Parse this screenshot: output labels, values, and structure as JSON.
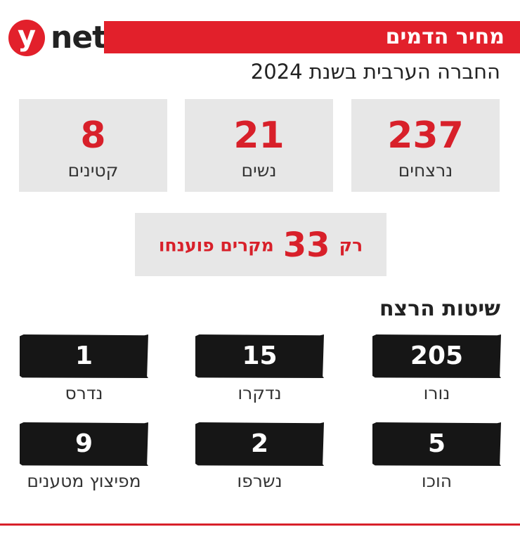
{
  "header": {
    "logo_letter": "y",
    "logo_text": "net",
    "title": "מחיר הדמים",
    "subtitle": "החברה הערבית בשנת 2024"
  },
  "colors": {
    "accent": "#e2202b",
    "stat_value": "#d8202a",
    "box_bg": "#e7e7e7",
    "method_bg": "#161616"
  },
  "chart_data": {
    "type": "table",
    "title": "מחיר הדמים",
    "subtitle": "החברה הערבית בשנת 2024",
    "stats": [
      {
        "value": "237",
        "label": "נרצחים"
      },
      {
        "value": "21",
        "label": "נשים"
      },
      {
        "value": "8",
        "label": "קטינים"
      }
    ],
    "solved": {
      "prefix": "רק",
      "value": "33",
      "suffix": "מקרים פוענחו"
    },
    "methods_title": "שיטות הרצח",
    "methods": [
      {
        "value": "205",
        "label": "נורו"
      },
      {
        "value": "15",
        "label": "נדקרו"
      },
      {
        "value": "1",
        "label": "נדרס"
      },
      {
        "value": "5",
        "label": "הוכו"
      },
      {
        "value": "2",
        "label": "נשרפו"
      },
      {
        "value": "9",
        "label": "מפיצוץ מטענים"
      }
    ]
  }
}
